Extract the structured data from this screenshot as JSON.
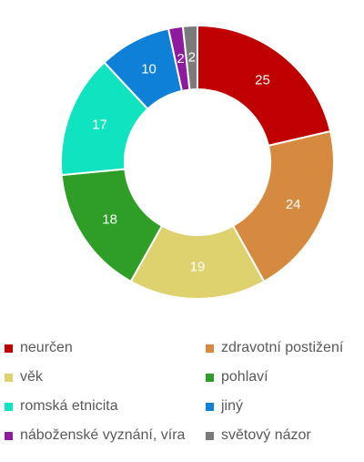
{
  "chart_data": {
    "type": "donut",
    "title": "",
    "series": [
      {
        "label": "neurčen",
        "value": 25,
        "color": "#c00000"
      },
      {
        "label": "zdravotní postižení",
        "value": 24,
        "color": "#d68a3f"
      },
      {
        "label": "věk",
        "value": 19,
        "color": "#ddd26d"
      },
      {
        "label": "pohlaví",
        "value": 18,
        "color": "#2e9e26"
      },
      {
        "label": "romská etnicita",
        "value": 17,
        "color": "#10e3c0"
      },
      {
        "label": "jiný",
        "value": 10,
        "color": "#0f80d8"
      },
      {
        "label": "náboženské vyznání, víra",
        "value": 2,
        "color": "#8e1aa0"
      },
      {
        "label": "světový názor",
        "value": 2,
        "color": "#7a7a7a"
      }
    ],
    "legend_position": "bottom",
    "data_labels": true
  }
}
